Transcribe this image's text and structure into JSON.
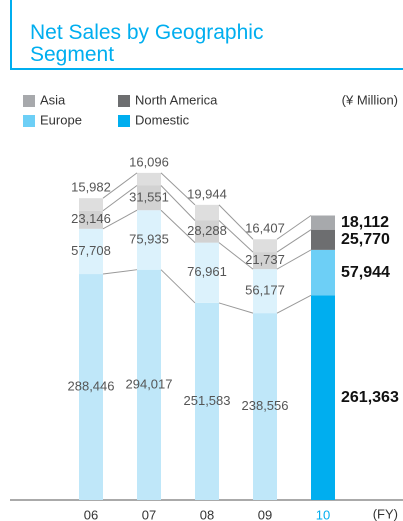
{
  "chart_data": {
    "type": "stacked_bar",
    "title": "Net Sales by Geographic Segment",
    "unit": "(¥ Million)",
    "x_label": "(FY)",
    "categories": [
      "06",
      "07",
      "08",
      "09",
      "10"
    ],
    "highlight": "10",
    "highlight_label_color": "#00aeef",
    "ylim": [
      0,
      420000
    ],
    "series": [
      {
        "name": "Domestic",
        "color": "#00aeef",
        "faded_color": "#bfe7f9",
        "values": [
          288446,
          294017,
          251583,
          238556,
          261363
        ],
        "value_labels": [
          "288,446",
          "294,017",
          "251,583",
          "238,556",
          "261,363"
        ]
      },
      {
        "name": "Europe",
        "color": "#6dcff6",
        "faded_color": "#dcf2fc",
        "values": [
          57708,
          75935,
          76961,
          56177,
          57944
        ],
        "value_labels": [
          "57,708",
          "75,935",
          "76,961",
          "56,177",
          "57,944"
        ]
      },
      {
        "name": "North America",
        "color": "#6d6e70",
        "faded_color": "#d2d2d2",
        "values": [
          23146,
          31551,
          28288,
          21737,
          25770
        ],
        "value_labels": [
          "23,146",
          "31,551",
          "28,288",
          "21,737",
          "25,770"
        ]
      },
      {
        "name": "Asia",
        "color": "#a7a9ac",
        "faded_color": "#dedede",
        "values": [
          15982,
          16096,
          19944,
          16407,
          18112
        ],
        "value_labels": [
          "15,982",
          "16,096",
          "19,944",
          "16,407",
          "18,112"
        ]
      }
    ]
  }
}
